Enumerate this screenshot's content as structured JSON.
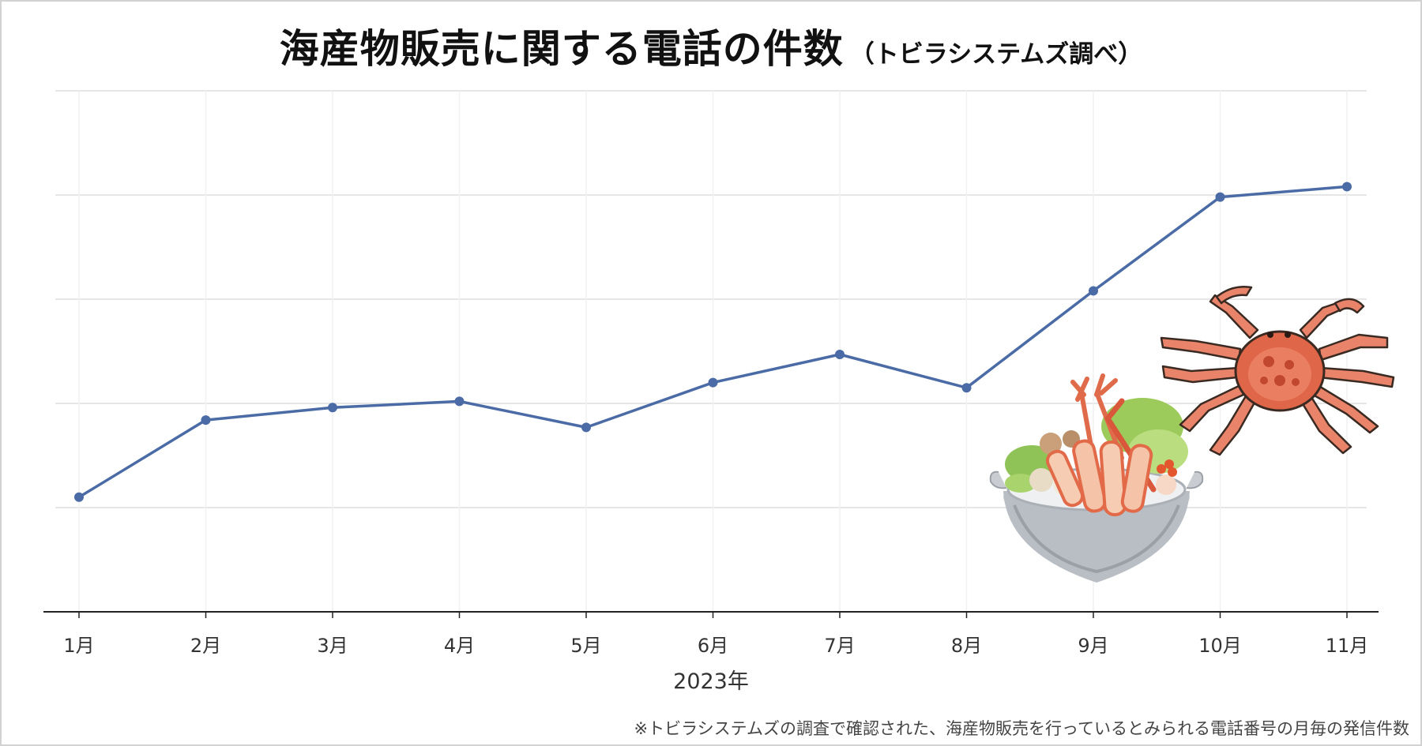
{
  "title": "海産物販売に関する電話の件数",
  "subtitle": "（トビラシステムズ調べ）",
  "footnote": "※トビラシステムズの調査で確認された、海産物販売を行っているとみられる電話番号の月毎の発信件数",
  "chart_data": {
    "type": "line",
    "title": "海産物販売に関する電話の件数",
    "subtitle": "（トビラシステムズ調べ）",
    "categories": [
      "1月",
      "2月",
      "3月",
      "4月",
      "5月",
      "6月",
      "7月",
      "8月",
      "9月",
      "10月",
      "11月"
    ],
    "xlabel": "2023年",
    "ylabel": "",
    "ylim": [
      0,
      5
    ],
    "yticks_labeled": false,
    "grid": true,
    "series": [
      {
        "values": [
          1.1,
          1.84,
          1.96,
          2.02,
          1.77,
          2.2,
          2.47,
          2.15,
          3.08,
          3.98,
          4.08
        ],
        "color": "#4a6ba5"
      }
    ],
    "line_color": "#4a6ba5",
    "grid_color": "#e6e6e6",
    "axis_color": "#222222"
  },
  "illustrations": {
    "hotpot": "crab-hotpot-illustration",
    "crab": "snow-crab-illustration"
  }
}
